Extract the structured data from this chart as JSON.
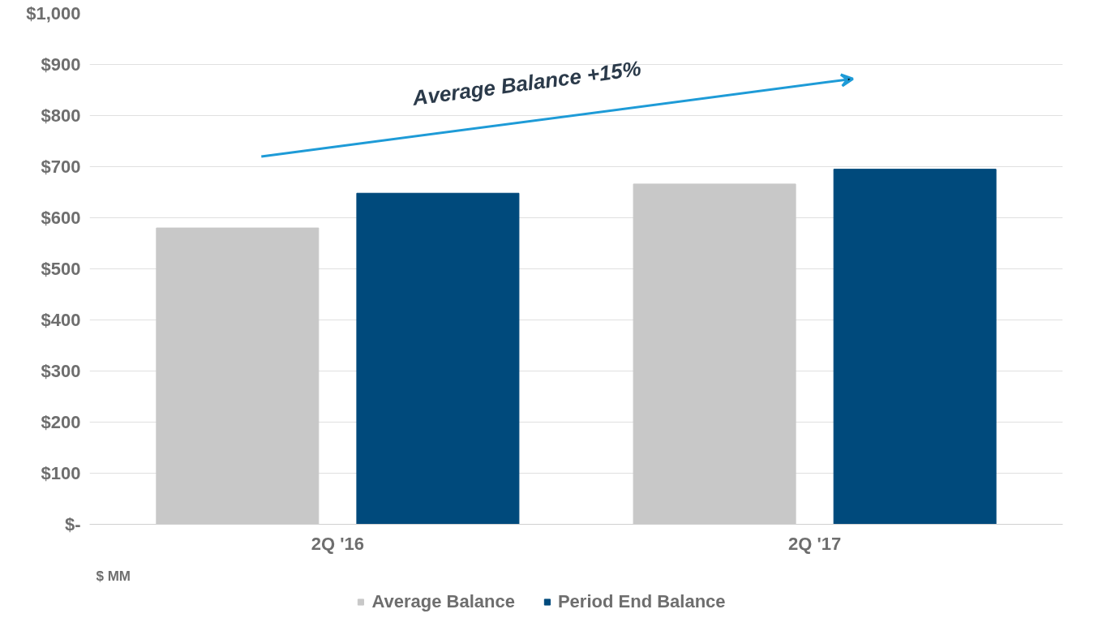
{
  "chart_data": {
    "type": "bar",
    "categories": [
      "2Q '16",
      "2Q '17"
    ],
    "series": [
      {
        "name": "Average Balance",
        "color": "#c8c8c8",
        "values": [
          580,
          666
        ]
      },
      {
        "name": "Period End Balance",
        "color": "#004a7c",
        "values": [
          648,
          695
        ]
      }
    ],
    "ylim": [
      0,
      1000
    ],
    "yticks": [
      {
        "value": 0,
        "label": "$-"
      },
      {
        "value": 100,
        "label": "$100"
      },
      {
        "value": 200,
        "label": "$200"
      },
      {
        "value": 300,
        "label": "$300"
      },
      {
        "value": 400,
        "label": "$400"
      },
      {
        "value": 500,
        "label": "$500"
      },
      {
        "value": 600,
        "label": "$600"
      },
      {
        "value": 700,
        "label": "$700"
      },
      {
        "value": 800,
        "label": "$800"
      },
      {
        "value": 900,
        "label": "$900"
      },
      {
        "value": 1000,
        "label": "$1,000"
      }
    ],
    "grid": "y",
    "legend": "bottom",
    "annotations": [
      "Average Balance +15%",
      "$ MM"
    ]
  }
}
